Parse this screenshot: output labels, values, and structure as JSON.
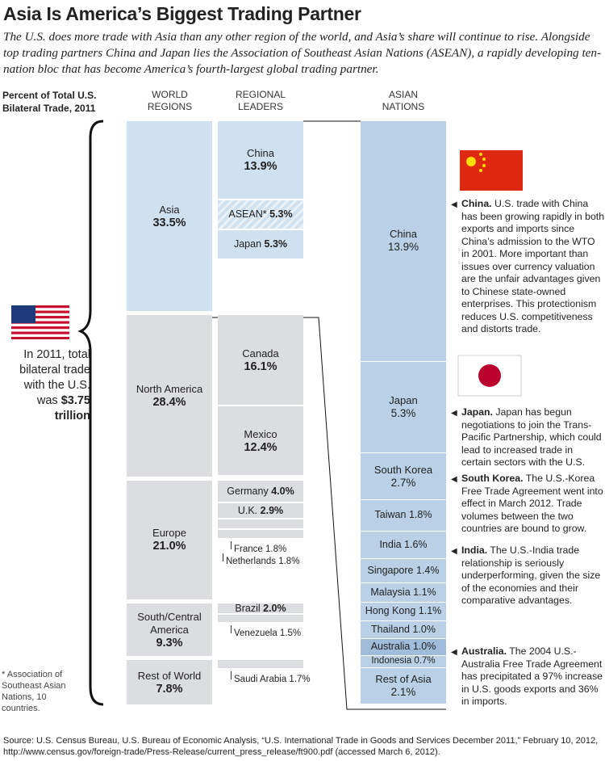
{
  "title": "Asia Is America’s Biggest Trading Partner",
  "subtitle": "The U.S. does more trade with Asia than any other region of the world, and Asia’s share will continue to rise. Alongside top trading partners China and Japan lies the Association of Southeast Asian Nations (ASEAN), a rapidly developing ten-nation bloc that has become America’s fourth-largest global trading partner.",
  "axis_label": "Percent of Total U.S. Bilateral Trade, 2011",
  "column_headers": [
    "WORLD REGIONS",
    "REGIONAL LEADERS",
    "ASIAN NATIONS"
  ],
  "total_note": "In 2011, total bilateral trade with the U.S. was",
  "total_value": "$3.75 trillion",
  "regions": [
    {
      "name": "Asia",
      "value": 33.5,
      "value_label": "33.5%",
      "leaders": [
        {
          "name": "China",
          "value": 13.9,
          "value_label": "13.9%"
        },
        {
          "name": "ASEAN*",
          "value": 5.3,
          "value_label": "5.3%"
        },
        {
          "name": "Japan",
          "value": 5.3,
          "value_label": "5.3%"
        }
      ]
    },
    {
      "name": "North America",
      "value": 28.4,
      "value_label": "28.4%",
      "leaders": [
        {
          "name": "Canada",
          "value": 16.1,
          "value_label": "16.1%"
        },
        {
          "name": "Mexico",
          "value": 12.4,
          "value_label": "12.4%"
        }
      ]
    },
    {
      "name": "Europe",
      "value": 21.0,
      "value_label": "21.0%",
      "leaders": [
        {
          "name": "Germany",
          "value": 4.0,
          "value_label": "4.0%"
        },
        {
          "name": "U.K.",
          "value": 2.9,
          "value_label": "2.9%"
        },
        {
          "name": "France",
          "value": 1.8,
          "value_label": "1.8%"
        },
        {
          "name": "Netherlands",
          "value": 1.8,
          "value_label": "1.8%"
        }
      ]
    },
    {
      "name": "South/Central America",
      "value": 9.3,
      "value_label": "9.3%",
      "leaders": [
        {
          "name": "Brazil",
          "value": 2.0,
          "value_label": "2.0%"
        },
        {
          "name": "Venezuela",
          "value": 1.5,
          "value_label": "1.5%"
        }
      ]
    },
    {
      "name": "Rest of World",
      "value": 7.8,
      "value_label": "7.8%",
      "leaders": [
        {
          "name": "Saudi Arabia",
          "value": 1.7,
          "value_label": "1.7%"
        }
      ]
    }
  ],
  "asian_nations": [
    {
      "name": "China",
      "value": 13.9,
      "value_label": "13.9%"
    },
    {
      "name": "Japan",
      "value": 5.3,
      "value_label": "5.3%"
    },
    {
      "name": "South Korea",
      "value": 2.7,
      "value_label": "2.7%"
    },
    {
      "name": "Taiwan",
      "value": 1.8,
      "value_label": "1.8%"
    },
    {
      "name": "India",
      "value": 1.6,
      "value_label": "1.6%"
    },
    {
      "name": "Singapore",
      "value": 1.4,
      "value_label": "1.4%"
    },
    {
      "name": "Malaysia",
      "value": 1.1,
      "value_label": "1.1%"
    },
    {
      "name": "Hong Kong",
      "value": 1.1,
      "value_label": "1.1%"
    },
    {
      "name": "Thailand",
      "value": 1.0,
      "value_label": "1.0%"
    },
    {
      "name": "Australia",
      "value": 1.0,
      "value_label": "1.0%"
    },
    {
      "name": "Indonesia",
      "value": 0.7,
      "value_label": "0.7%"
    },
    {
      "name": "Rest of Asia",
      "value": 2.1,
      "value_label": "2.1%"
    }
  ],
  "notes": [
    {
      "lead": "China.",
      "text": "U.S. trade with China has been growing rapidly in both exports and imports since China’s admission to the WTO in 2001. More important than issues over currency valuation are the unfair advantages given to Chinese state-owned enterprises. This protectionism reduces U.S. competitiveness and distorts trade."
    },
    {
      "lead": "Japan.",
      "text": "Japan has begun negotiations to join the Trans-Pacific Partnership, which could lead to increased trade in certain sectors with the U.S."
    },
    {
      "lead": "South Korea.",
      "text": "The U.S.-Korea Free Trade Agreement went into effect in March 2012. Trade volumes between the two countries are bound to grow."
    },
    {
      "lead": "India.",
      "text": "The U.S.-India trade relationship is seriously underperforming, given the size of the economies and their comparative advantages."
    },
    {
      "lead": "Australia.",
      "text": "The 2004 U.S.-Australia Free Trade Agreement has precipitated a 97% increase in U.S. goods exports and 36% in imports."
    }
  ],
  "footnote": "* Association of Southeast Asian Nations, 10 countries.",
  "source": "Source: U.S. Census Bureau, U.S. Bureau of Economic Analysis, “U.S. International Trade in Goods and Services December 2011,” February 10, 2012, http://www.census.gov/foreign-trade/Press-Release/current_press_release/ft900.pdf (accessed March 6, 2012)."
}
